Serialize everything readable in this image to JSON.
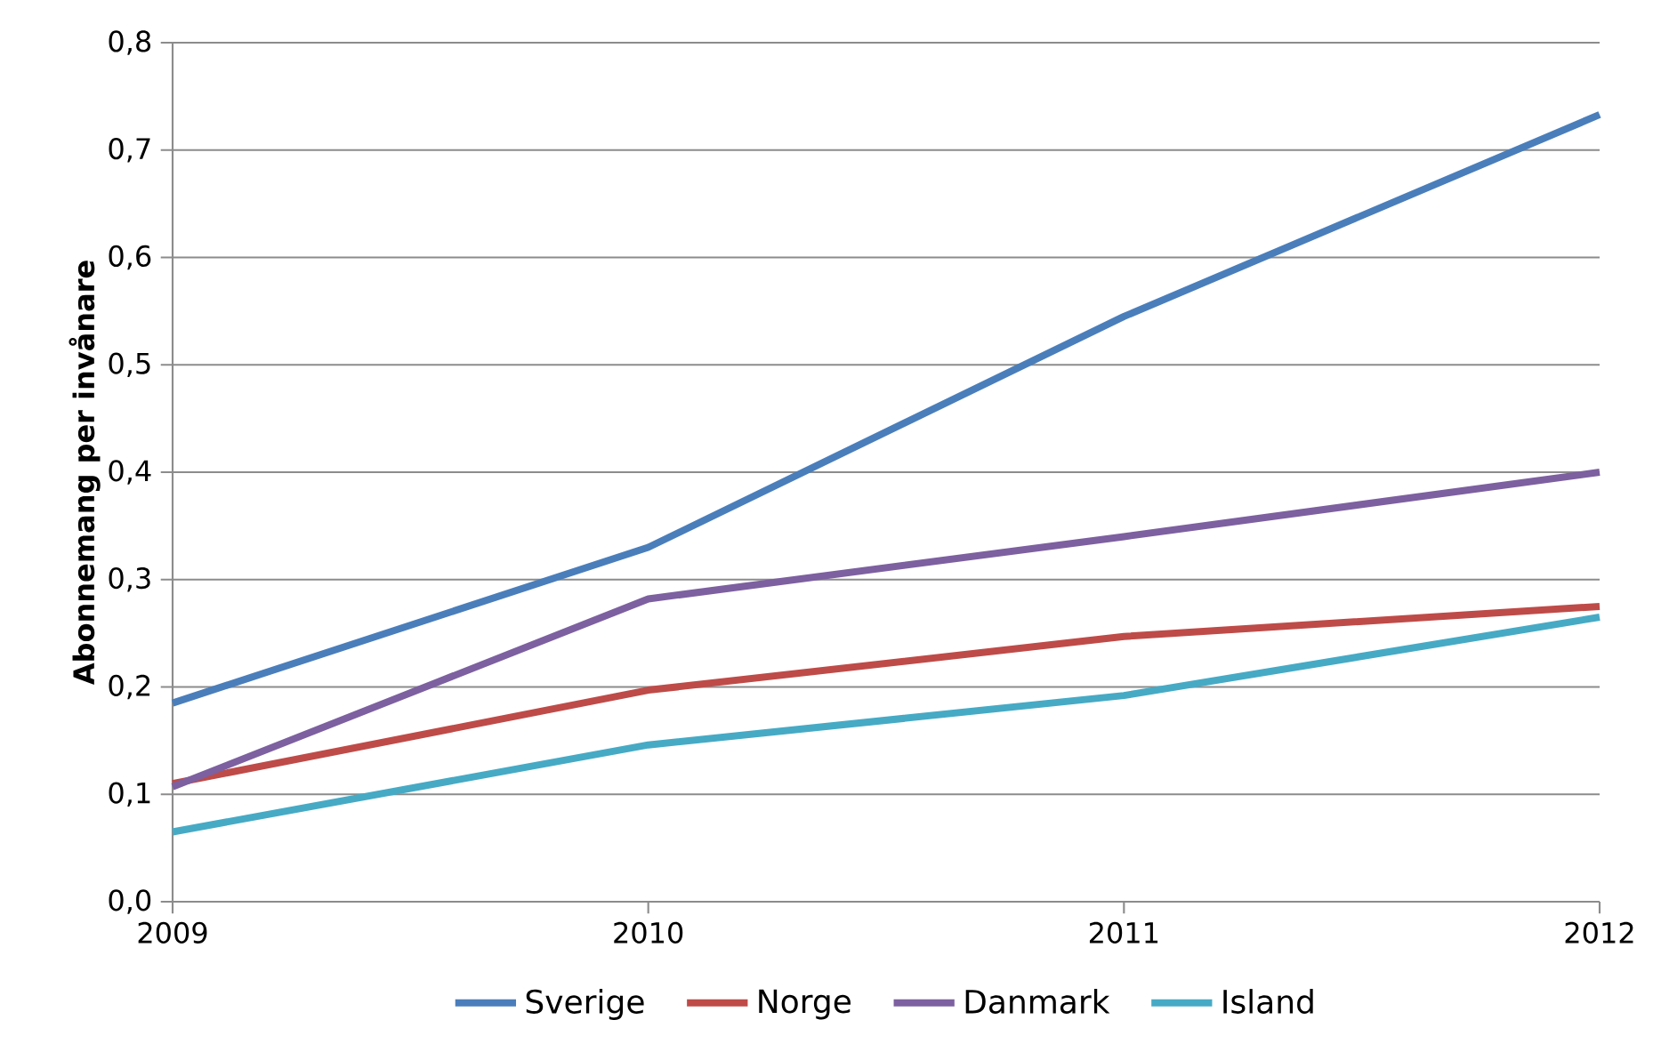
{
  "chart_data": {
    "type": "line",
    "ylabel": "Abonnemang per invånare",
    "x": [
      2009,
      2010,
      2011,
      2012
    ],
    "series": [
      {
        "name": "Sverige",
        "color": "#4a7ebb",
        "values": [
          0.185,
          0.33,
          0.545,
          0.733
        ]
      },
      {
        "name": "Norge",
        "color": "#be4b48",
        "values": [
          0.11,
          0.197,
          0.247,
          0.275
        ]
      },
      {
        "name": "Danmark",
        "color": "#7d60a0",
        "values": [
          0.107,
          0.282,
          0.34,
          0.4
        ]
      },
      {
        "name": "Island",
        "color": "#46aac5",
        "values": [
          0.065,
          0.146,
          0.192,
          0.265
        ]
      }
    ],
    "xlim": [
      2009,
      2012
    ],
    "xticks": [
      2009,
      2010,
      2011,
      2012
    ],
    "ylim": [
      0,
      0.8
    ],
    "yticks": [
      {
        "value": 0,
        "label": "0,0"
      },
      {
        "value": 0.1,
        "label": "0,1"
      },
      {
        "value": 0.2,
        "label": "0,2"
      },
      {
        "value": 0.3,
        "label": "0,3"
      },
      {
        "value": 0.4,
        "label": "0,4"
      },
      {
        "value": 0.5,
        "label": "0,5"
      },
      {
        "value": 0.6,
        "label": "0,6"
      },
      {
        "value": 0.7,
        "label": "0,7"
      },
      {
        "value": 0.8,
        "label": "0,8"
      }
    ],
    "grid": "y",
    "legend": "bottom",
    "marker": "none",
    "line_style": "solid"
  }
}
